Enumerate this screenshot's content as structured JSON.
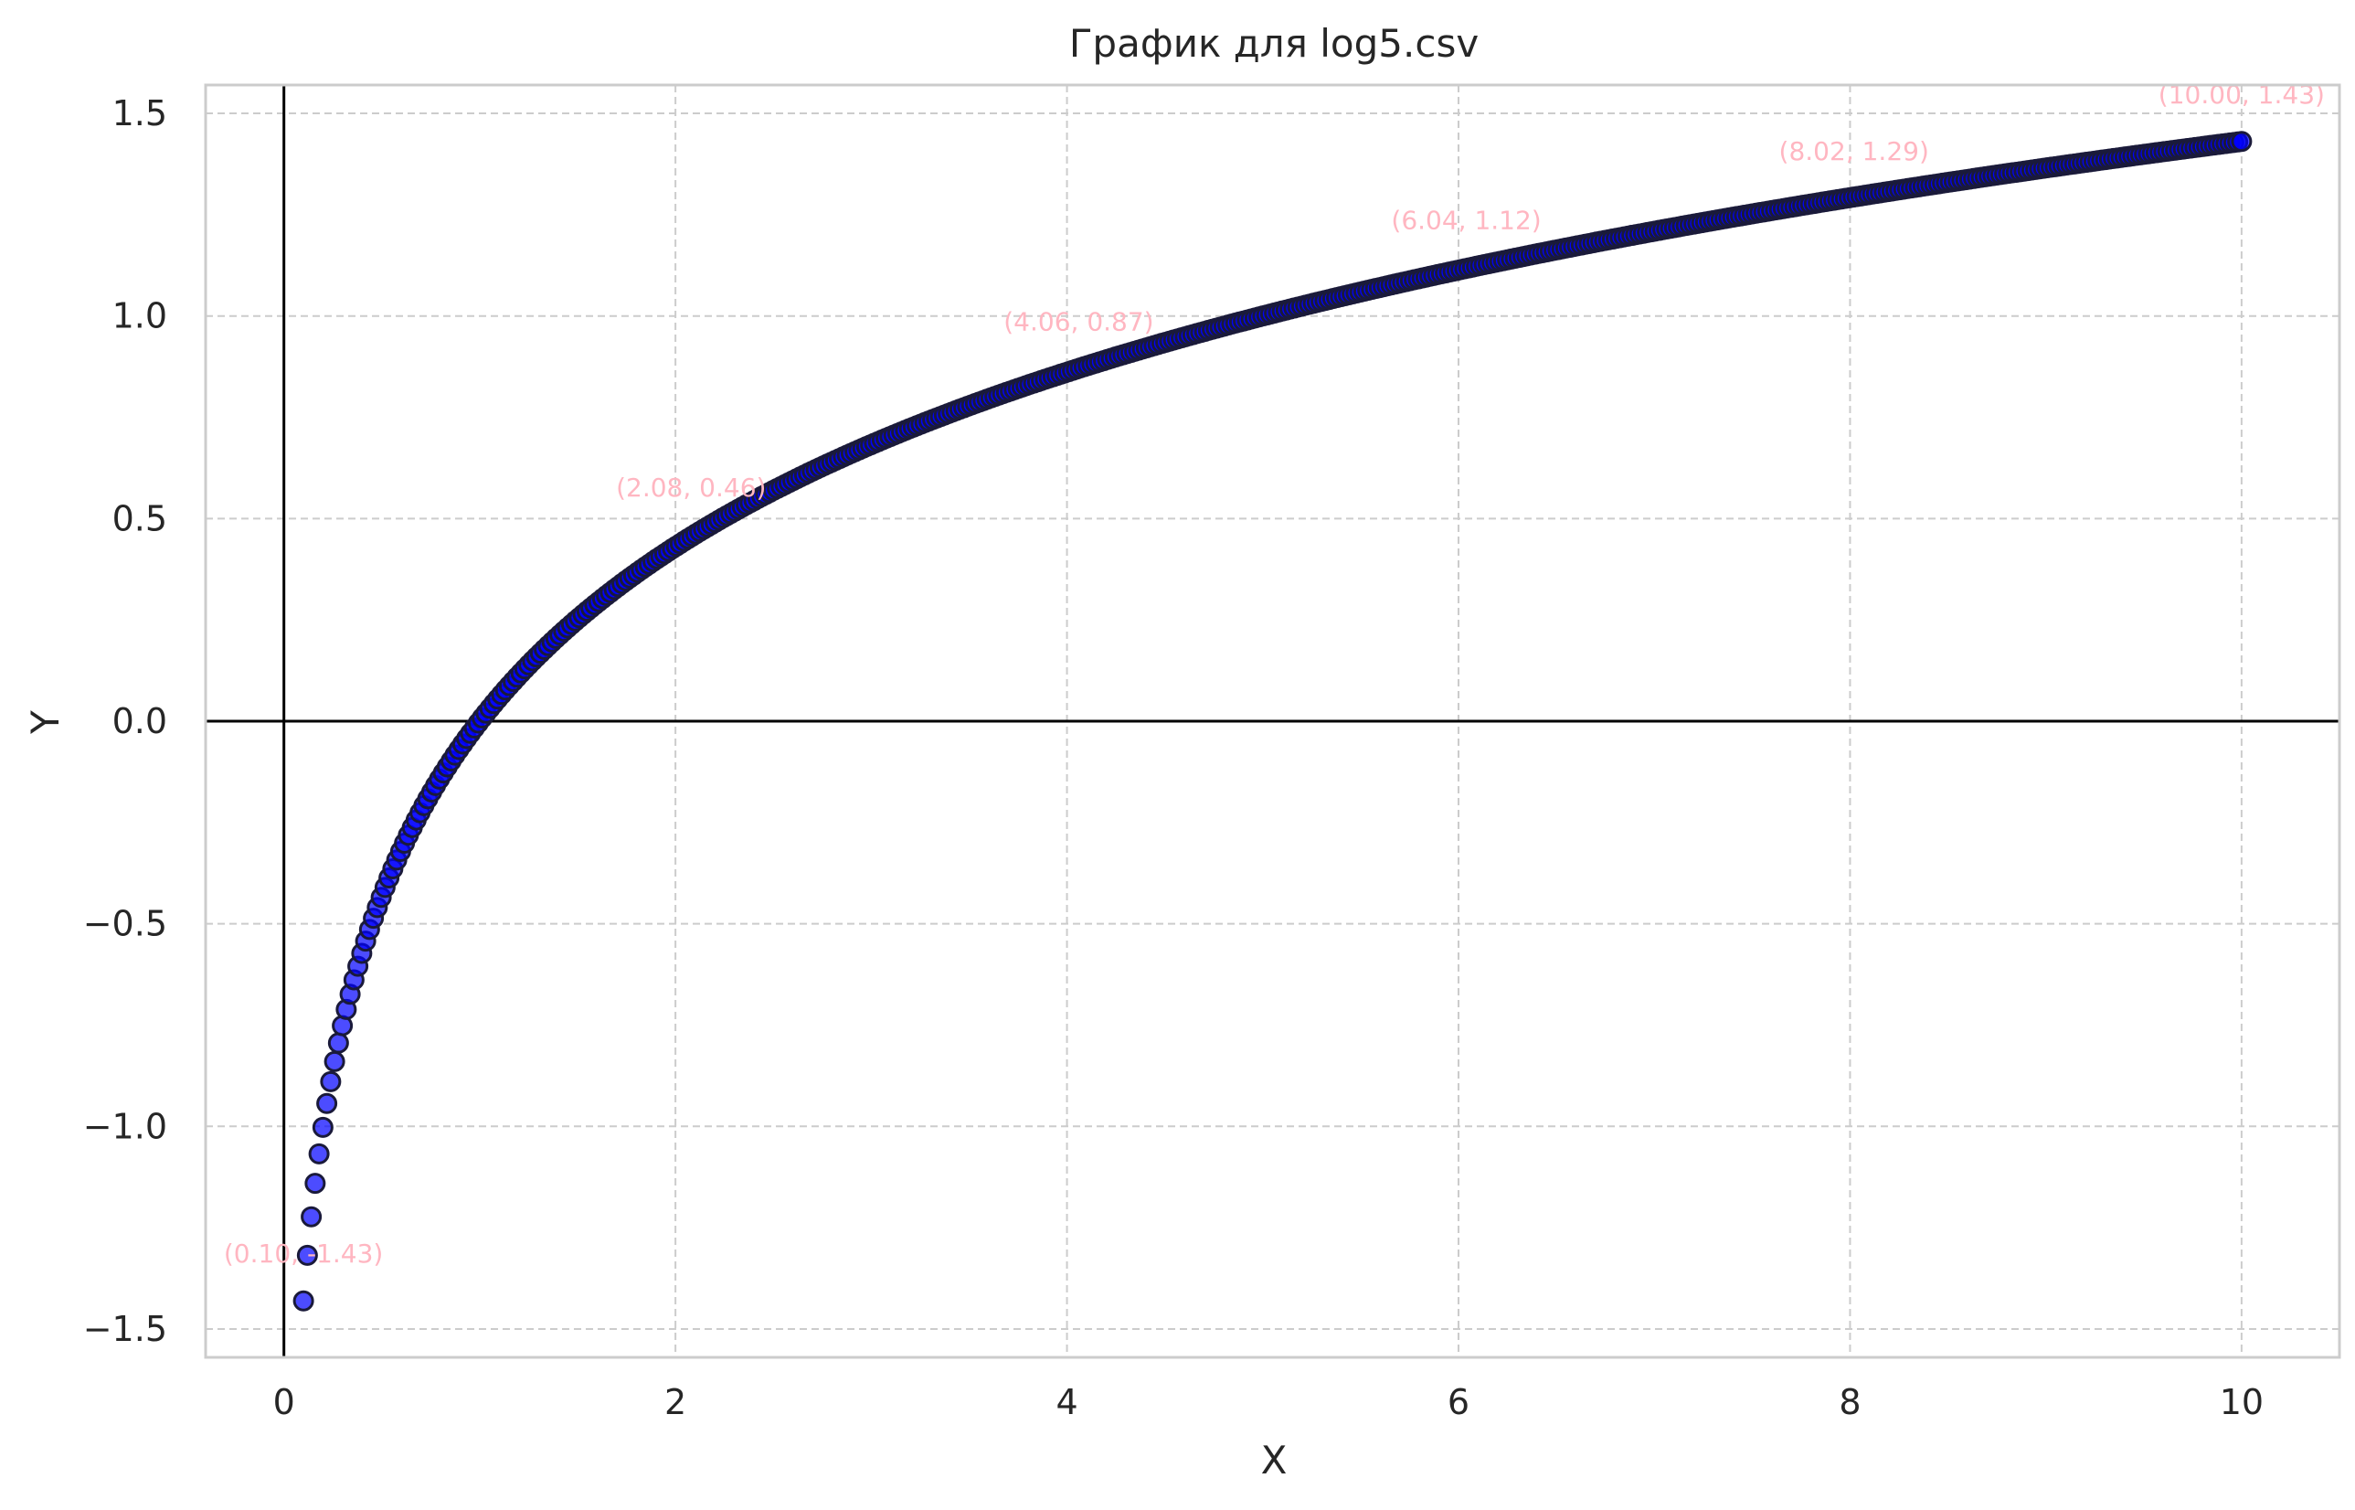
{
  "chart_data": {
    "type": "scatter",
    "title": "График для log5.csv",
    "xlabel": "X",
    "ylabel": "Y",
    "xlim": [
      -0.4,
      10.5
    ],
    "ylim": [
      -1.57,
      1.57
    ],
    "xticks": [
      0,
      2,
      4,
      6,
      8,
      10
    ],
    "yticks": [
      -1.5,
      -1.0,
      -0.5,
      0.0,
      0.5,
      1.0,
      1.5
    ],
    "xtick_labels": [
      "0",
      "2",
      "4",
      "6",
      "8",
      "10"
    ],
    "ytick_labels": [
      "−1.5",
      "−1.0",
      "−0.5",
      "0.0",
      "0.5",
      "1.0",
      "1.5"
    ],
    "grid": true,
    "function": "log5(x)",
    "x_range": [
      0.1,
      10.0
    ],
    "point_count": 500,
    "reference_lines": {
      "x": 0,
      "y": 0
    },
    "annotations": [
      {
        "x": 0.1,
        "y": -1.43,
        "text": "(0.10, -1.43)"
      },
      {
        "x": 2.08,
        "y": 0.46,
        "text": "(2.08, 0.46)"
      },
      {
        "x": 4.06,
        "y": 0.87,
        "text": "(4.06, 0.87)"
      },
      {
        "x": 6.04,
        "y": 1.12,
        "text": "(6.04, 1.12)"
      },
      {
        "x": 8.02,
        "y": 1.29,
        "text": "(8.02, 1.29)"
      },
      {
        "x": 10.0,
        "y": 1.43,
        "text": "(10.00, 1.43)"
      }
    ],
    "colors": {
      "point_fill": "#0000ff",
      "point_edge": "#1a1a3a",
      "annotation": "#ffb6c1",
      "grid": "#cccccc",
      "axis_line": "#000000",
      "spine": "#cccccc"
    }
  }
}
